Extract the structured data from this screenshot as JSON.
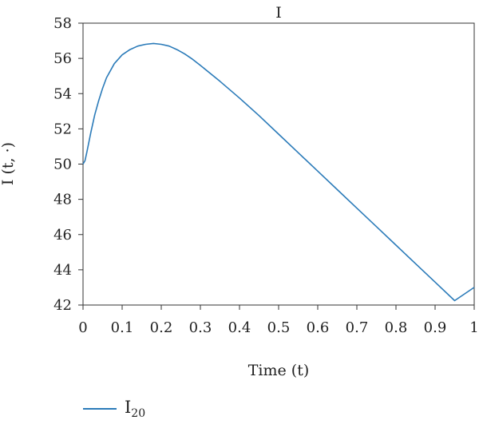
{
  "chart_data": {
    "type": "line",
    "title": "I",
    "xlabel": "Time (t)",
    "ylabel": "I (t, ·)",
    "xlim": [
      0,
      1
    ],
    "ylim": [
      42,
      58
    ],
    "xticks": [
      0,
      0.1,
      0.2,
      0.3,
      0.4,
      0.5,
      0.6,
      0.7,
      0.8,
      0.9,
      1
    ],
    "xtick_labels": [
      "0",
      "0.1",
      "0.2",
      "0.3",
      "0.4",
      "0.5",
      "0.6",
      "0.7",
      "0.8",
      "0.9",
      "1"
    ],
    "yticks": [
      42,
      44,
      46,
      48,
      50,
      52,
      54,
      56,
      58
    ],
    "ytick_labels": [
      "42",
      "44",
      "46",
      "48",
      "50",
      "52",
      "54",
      "56",
      "58"
    ],
    "grid": false,
    "legend_position": "bottom-left",
    "series": [
      {
        "name": "I",
        "name_subscript": "20",
        "color": "#2b7bb9",
        "x": [
          0,
          0.005,
          0.01,
          0.02,
          0.03,
          0.04,
          0.05,
          0.06,
          0.08,
          0.1,
          0.12,
          0.14,
          0.16,
          0.18,
          0.2,
          0.22,
          0.24,
          0.26,
          0.28,
          0.3,
          0.35,
          0.4,
          0.45,
          0.5,
          0.55,
          0.6,
          0.65,
          0.7,
          0.75,
          0.8,
          0.85,
          0.9,
          0.95,
          1.0
        ],
        "y": [
          50.0,
          50.2,
          50.7,
          51.8,
          52.8,
          53.6,
          54.3,
          54.9,
          55.7,
          56.2,
          56.5,
          56.7,
          56.8,
          56.85,
          56.8,
          56.7,
          56.5,
          56.25,
          55.95,
          55.6,
          54.7,
          53.75,
          52.75,
          51.7,
          50.65,
          49.6,
          48.55,
          47.5,
          46.45,
          45.4,
          44.35,
          43.3,
          42.25,
          43.0
        ]
      }
    ]
  }
}
